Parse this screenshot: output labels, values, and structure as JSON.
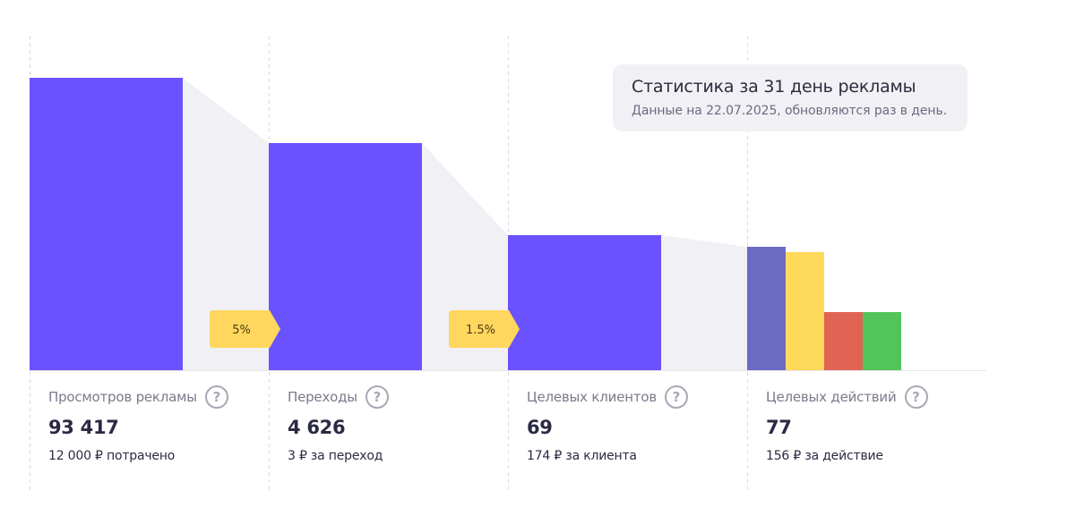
{
  "info": {
    "title": "Статистика за 31 день рекламы",
    "subtitle": "Данные на 22.07.2025, обновляются раз в день."
  },
  "stages": [
    {
      "label": "Просмотров рекламы",
      "value": "93 417",
      "sub": "12 000 ₽ потрачено"
    },
    {
      "label": "Переходы",
      "value": "4 626",
      "sub": "3 ₽ за переход"
    },
    {
      "label": "Целевых клиентов",
      "value": "69",
      "sub": "174 ₽ за клиента"
    },
    {
      "label": "Целевых действий",
      "value": "77",
      "sub": "156 ₽ за действие"
    }
  ],
  "help_symbol": "?",
  "colors": {
    "bar": "#6a52ff",
    "connector": "#f1f1f5",
    "badge": "#ffd75e",
    "actions": [
      "#6c6bc4",
      "#ffd95a",
      "#e06454",
      "#52c45a"
    ]
  },
  "chart_data": {
    "type": "bar",
    "categories": [
      "Просмотров рекламы",
      "Переходы",
      "Целевых клиентов",
      "Целевых действий"
    ],
    "values": [
      93417,
      4626,
      69,
      77
    ],
    "conversions": [
      "5%",
      "1.5%"
    ],
    "action_breakdown_relative": [
      1.0,
      0.96,
      0.47,
      0.47
    ],
    "grid": false
  }
}
